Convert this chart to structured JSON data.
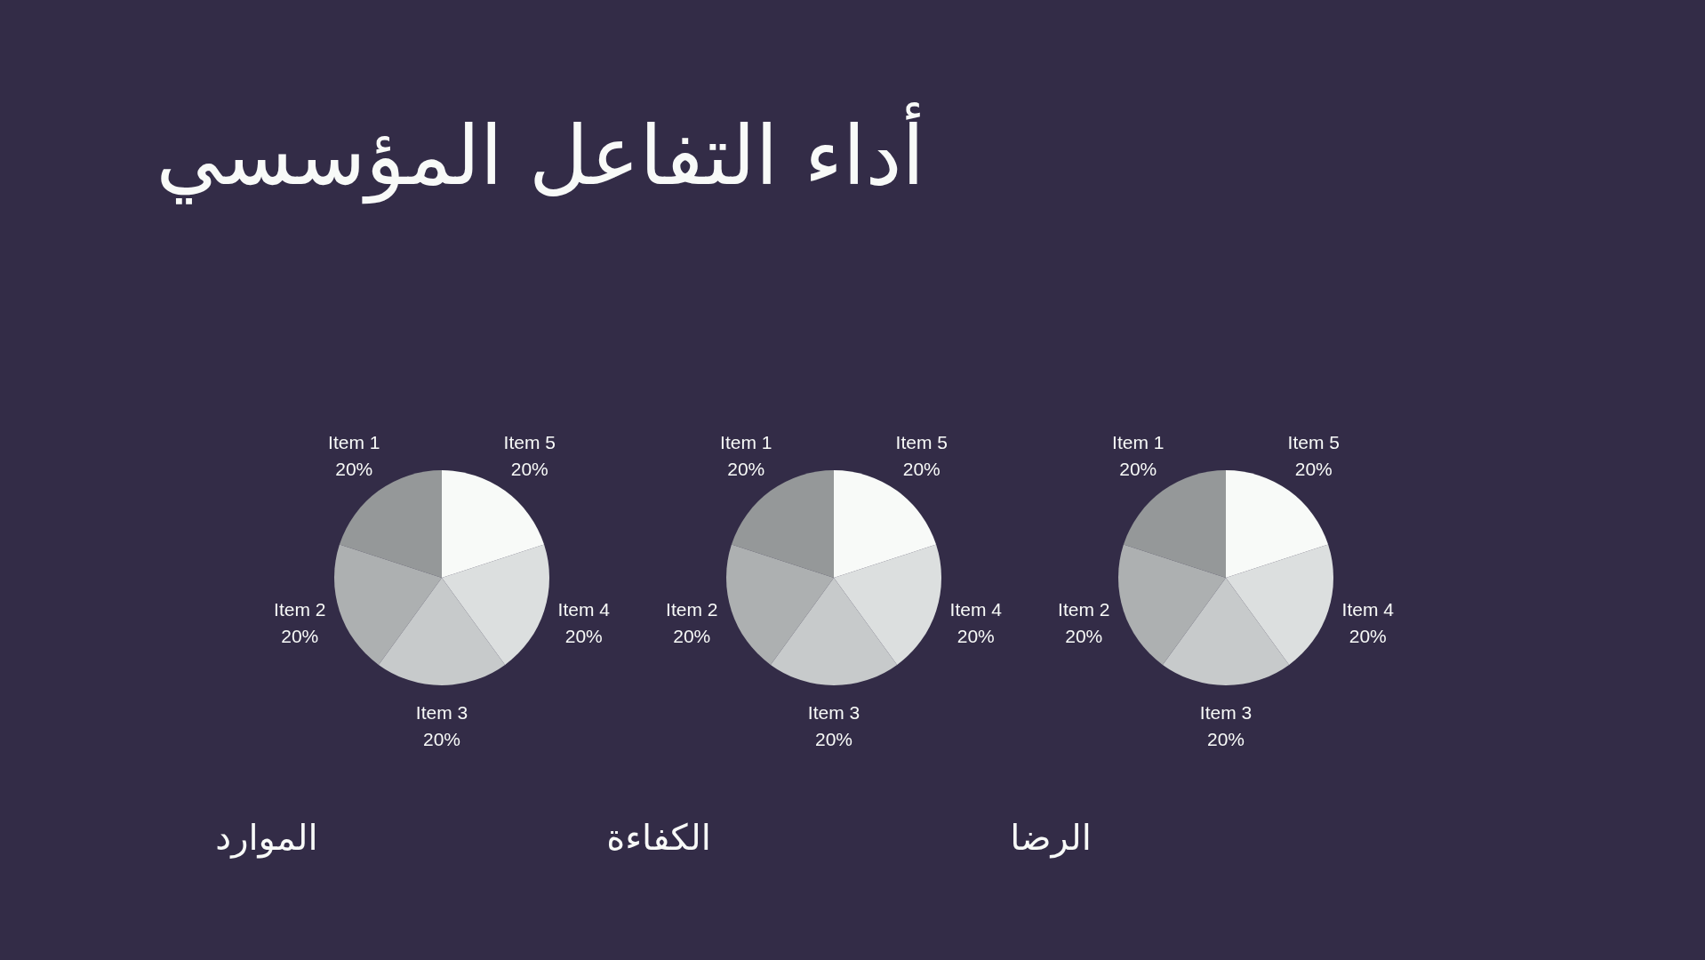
{
  "chart_data": [
    {
      "type": "pie",
      "title": "الموارد",
      "annotations": [
        "أداء التفاعل المؤسسي"
      ],
      "categories": [
        "Item 1",
        "Item 2",
        "Item 3",
        "Item 4",
        "Item 5"
      ],
      "values": [
        20,
        20,
        20,
        20,
        20
      ],
      "colors": [
        "#959899",
        "#adb0b1",
        "#c7cacb",
        "#dcdfdf",
        "#f8faf8"
      ],
      "value_labels": [
        "20%",
        "20%",
        "20%",
        "20%",
        "20%"
      ]
    },
    {
      "type": "pie",
      "title": "الكفاءة",
      "categories": [
        "Item 1",
        "Item 2",
        "Item 3",
        "Item 4",
        "Item 5"
      ],
      "values": [
        20,
        20,
        20,
        20,
        20
      ],
      "colors": [
        "#959899",
        "#adb0b1",
        "#c7cacb",
        "#dcdfdf",
        "#f8faf8"
      ],
      "value_labels": [
        "20%",
        "20%",
        "20%",
        "20%",
        "20%"
      ]
    },
    {
      "type": "pie",
      "title": "الرضا",
      "categories": [
        "Item 1",
        "Item 2",
        "Item 3",
        "Item 4",
        "Item 5"
      ],
      "values": [
        20,
        20,
        20,
        20,
        20
      ],
      "colors": [
        "#959899",
        "#adb0b1",
        "#c7cacb",
        "#dcdfdf",
        "#f8faf8"
      ],
      "value_labels": [
        "20%",
        "20%",
        "20%",
        "20%",
        "20%"
      ]
    }
  ]
}
